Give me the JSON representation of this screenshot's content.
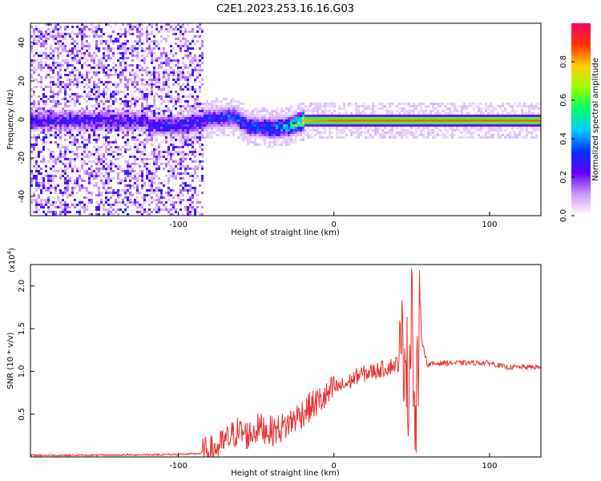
{
  "title": "C2E1.2023.253.16.16.G03",
  "chart_data": [
    {
      "type": "heatmap",
      "xlabel": "Height of straight line (km)",
      "ylabel": "Frequency (Hz)",
      "xlim": [
        -195,
        133
      ],
      "ylim": [
        -50,
        50
      ],
      "x_ticks": [
        -100,
        0,
        100
      ],
      "y_ticks": [
        -40,
        -20,
        0,
        20,
        40
      ],
      "colorbar": {
        "label": "Normalized spectral amplitude",
        "range": [
          0,
          1
        ],
        "ticks": [
          "0.0",
          "0.2",
          "0.4",
          "0.6",
          "0.8"
        ],
        "colors": [
          "#ffffff",
          "#cc99ff",
          "#6600ff",
          "#0033ff",
          "#00ccff",
          "#00ff66",
          "#99ff00",
          "#ffcc00",
          "#ff3300",
          "#ff0066"
        ]
      },
      "ridge": [
        {
          "x": -120,
          "y": -3,
          "amp": 0.3
        },
        {
          "x": -95,
          "y": -2,
          "amp": 0.35
        },
        {
          "x": -80,
          "y": 1,
          "amp": 0.35
        },
        {
          "x": -65,
          "y": 2,
          "amp": 0.4
        },
        {
          "x": -55,
          "y": -3,
          "amp": 0.4
        },
        {
          "x": -40,
          "y": -4,
          "amp": 0.45
        },
        {
          "x": -30,
          "y": -3,
          "amp": 0.5
        },
        {
          "x": -20,
          "y": 0,
          "amp": 0.8
        },
        {
          "x": 0,
          "y": 0,
          "amp": 0.85
        },
        {
          "x": 40,
          "y": 0,
          "amp": 0.85
        },
        {
          "x": 100,
          "y": 0,
          "amp": 0.85
        },
        {
          "x": 133,
          "y": 0,
          "amp": 0.85
        }
      ]
    },
    {
      "type": "line",
      "xlabel": "Height of straight line (km)",
      "ylabel": "SNR (10 * v/v)",
      "y_multiplier": "(x10",
      "y_multiplier_exp": "4",
      "y_multiplier_close": ")",
      "xlim": [
        -195,
        133
      ],
      "ylim": [
        0,
        2.25
      ],
      "x_ticks": [
        -100,
        0,
        100
      ],
      "y_ticks": [
        "0.5",
        "1.0",
        "1.5",
        "2.0"
      ],
      "color": "#e8312f",
      "series": [
        {
          "x": [
            -195,
            -150,
            -100,
            -85,
            -75,
            -70,
            -62,
            -55,
            -48,
            -40,
            -32,
            -25,
            -18,
            -10,
            -5,
            0,
            8,
            15,
            25,
            35,
            42,
            46,
            48,
            50,
            52,
            55,
            60,
            70,
            80,
            90,
            100,
            110,
            120,
            133
          ],
          "y": [
            0.02,
            0.02,
            0.03,
            0.04,
            0.1,
            0.18,
            0.3,
            0.25,
            0.35,
            0.3,
            0.35,
            0.45,
            0.55,
            0.65,
            0.7,
            0.8,
            0.85,
            0.95,
            1.0,
            1.05,
            1.1,
            1.4,
            0.6,
            2.2,
            0.1,
            1.5,
            1.08,
            1.1,
            1.1,
            1.1,
            1.1,
            1.05,
            1.05,
            1.05
          ]
        }
      ]
    }
  ]
}
